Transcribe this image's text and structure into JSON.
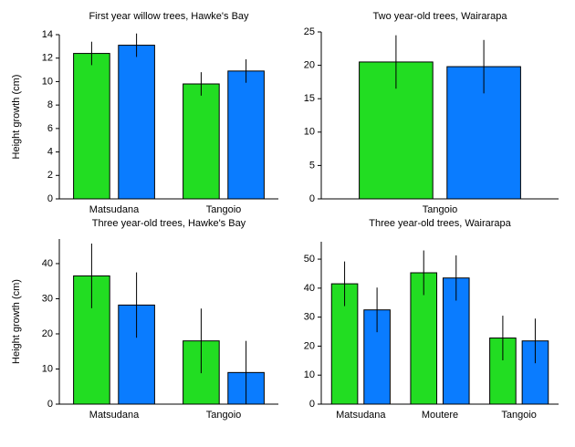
{
  "chart_data": [
    {
      "type": "bar",
      "title": "First year willow trees, Hawke's Bay",
      "y_label": "Height growth (cm)",
      "categories": [
        "Matsudana",
        "Tangoio"
      ],
      "series": [
        {
          "color": "#22dd22",
          "values": [
            12.4,
            9.8
          ],
          "errors": [
            1.0,
            1.0
          ]
        },
        {
          "color": "#0a7cff",
          "values": [
            13.1,
            10.9
          ],
          "errors": [
            1.0,
            1.0
          ]
        }
      ],
      "ylim": [
        0,
        14
      ],
      "yticks": [
        0,
        2,
        4,
        6,
        8,
        10,
        12,
        14
      ]
    },
    {
      "type": "bar",
      "title": "Two year-old trees, Wairarapa",
      "categories": [
        "Tangoio"
      ],
      "series": [
        {
          "color": "#22dd22",
          "values": [
            20.5
          ],
          "errors": [
            4.0
          ]
        },
        {
          "color": "#0a7cff",
          "values": [
            19.8
          ],
          "errors": [
            4.0
          ]
        }
      ],
      "ylim": [
        0,
        25
      ],
      "yticks": [
        0,
        5,
        10,
        15,
        20,
        25
      ]
    },
    {
      "type": "bar",
      "title": "Three year-old trees, Hawke's Bay",
      "y_label": "Height growth (cm)",
      "categories": [
        "Matsudana",
        "Tangoio"
      ],
      "series": [
        {
          "color": "#22dd22",
          "values": [
            36.5,
            18.0
          ],
          "errors": [
            9.2,
            9.2
          ]
        },
        {
          "color": "#0a7cff",
          "values": [
            28.2,
            9.0
          ],
          "errors": [
            9.3,
            9.0
          ]
        }
      ],
      "ylim": [
        0,
        47
      ],
      "yticks": [
        0,
        10,
        20,
        30,
        40
      ]
    },
    {
      "type": "bar",
      "title": "Three year-old trees, Wairarapa",
      "categories": [
        "Matsudana",
        "Moutere",
        "Tangoio"
      ],
      "series": [
        {
          "color": "#22dd22",
          "values": [
            41.5,
            45.3,
            22.8
          ],
          "errors": [
            7.7,
            7.7,
            7.7
          ]
        },
        {
          "color": "#0a7cff",
          "values": [
            32.5,
            43.5,
            21.8
          ],
          "errors": [
            7.7,
            7.8,
            7.7
          ]
        }
      ],
      "ylim": [
        0,
        56
      ],
      "yticks": [
        0,
        10,
        20,
        30,
        40,
        50
      ]
    }
  ]
}
